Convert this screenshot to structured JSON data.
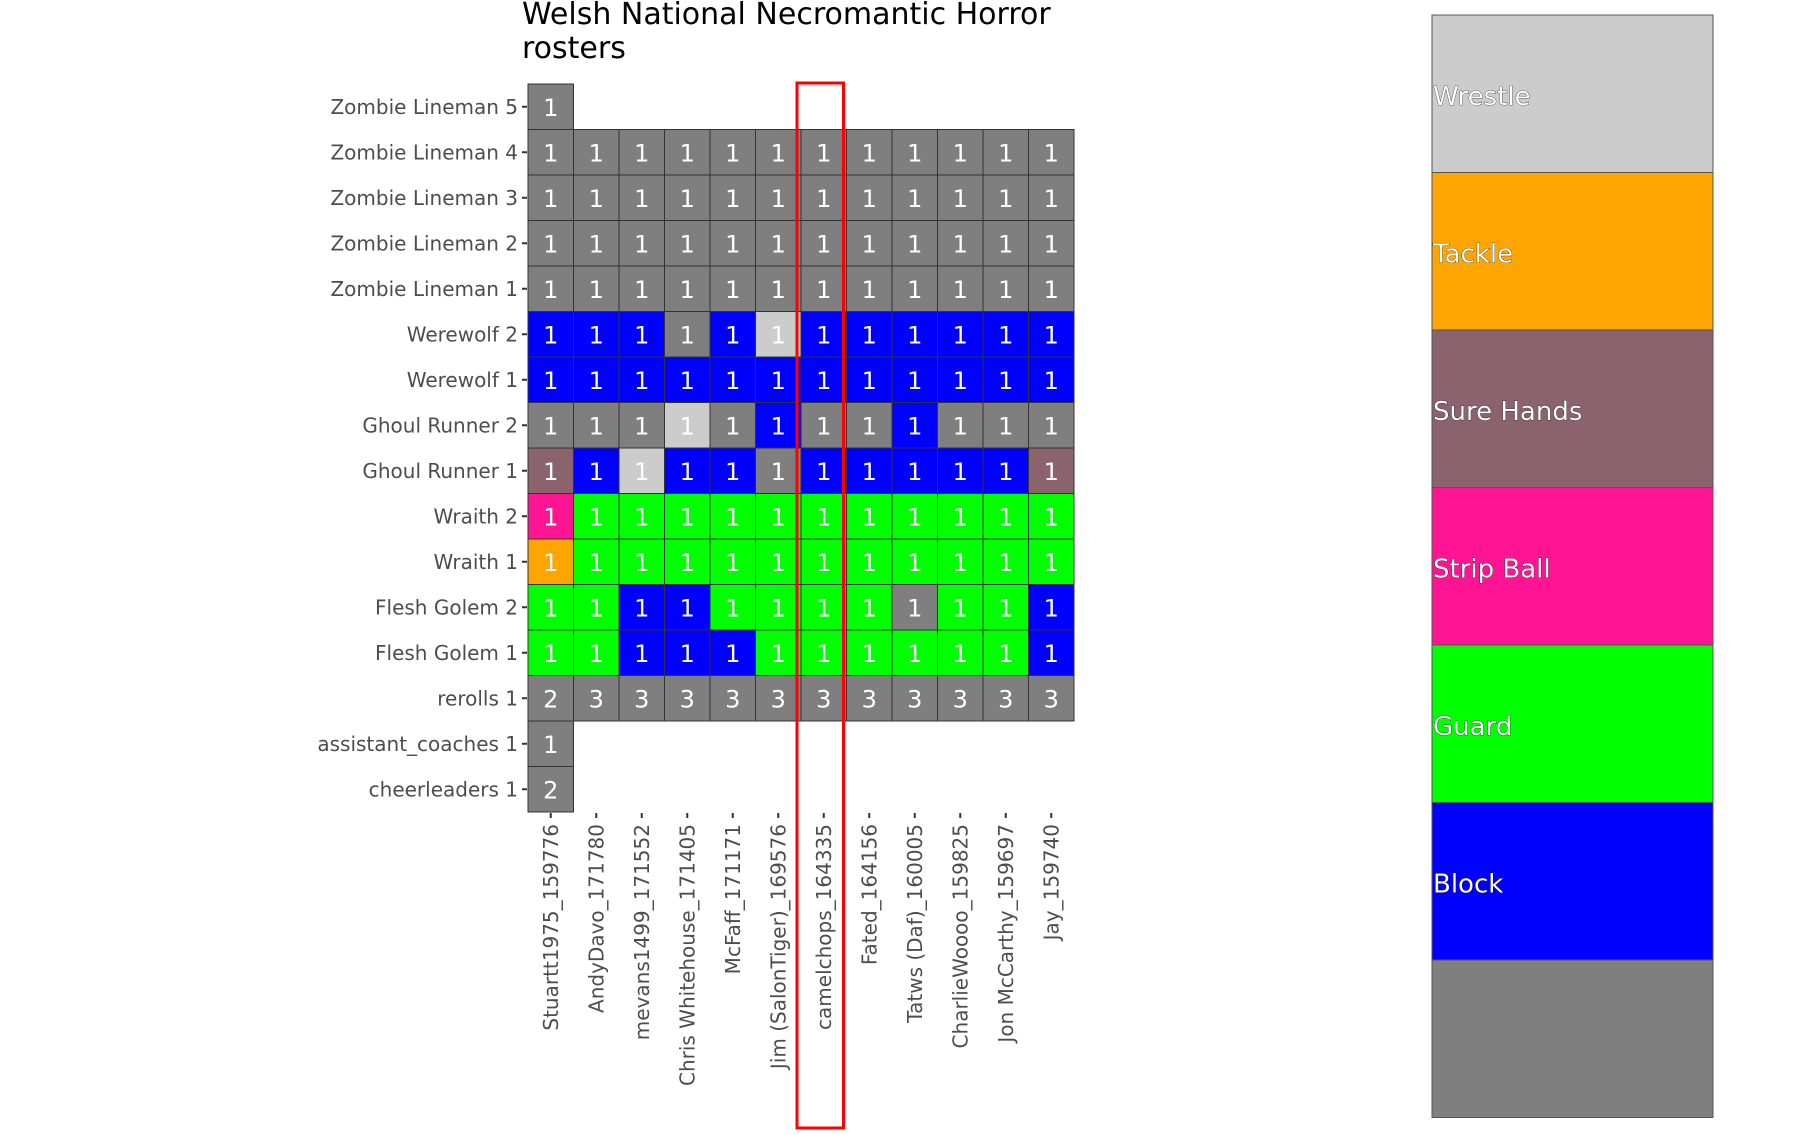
{
  "chart_data": {
    "type": "heatmap",
    "title_lines": [
      "Welsh National Necromantic Horror",
      "rosters"
    ],
    "columns": [
      "Stuartt1975_159776",
      "AndyDavo_171780",
      "mevans1499_171552",
      "Chris Whitehouse_171405",
      "McFaff_171171",
      "Jim (SalonTiger)_169576",
      "camelchops_164335",
      "Fated_164156",
      "Tatws (Daf)_160005",
      "CharlieWoooo_159825",
      "Jon McCarthy_159697",
      "Jay_159740"
    ],
    "rows": [
      "Zombie Lineman 5",
      "Zombie Lineman 4",
      "Zombie Lineman 3",
      "Zombie Lineman 2",
      "Zombie Lineman 1",
      "Werewolf 2",
      "Werewolf 1",
      "Ghoul Runner 2",
      "Ghoul Runner 1",
      "Wraith 2",
      "Wraith 1",
      "Flesh Golem 2",
      "Flesh Golem 1",
      "rerolls 1",
      "assistant_coaches 1",
      "cheerleaders 1"
    ],
    "cells": [
      [
        [
          "N",
          "1"
        ],
        null,
        null,
        null,
        null,
        null,
        null,
        null,
        null,
        null,
        null,
        null
      ],
      [
        [
          "N",
          "1"
        ],
        [
          "N",
          "1"
        ],
        [
          "N",
          "1"
        ],
        [
          "N",
          "1"
        ],
        [
          "N",
          "1"
        ],
        [
          "N",
          "1"
        ],
        [
          "N",
          "1"
        ],
        [
          "N",
          "1"
        ],
        [
          "N",
          "1"
        ],
        [
          "N",
          "1"
        ],
        [
          "N",
          "1"
        ],
        [
          "N",
          "1"
        ]
      ],
      [
        [
          "N",
          "1"
        ],
        [
          "N",
          "1"
        ],
        [
          "N",
          "1"
        ],
        [
          "N",
          "1"
        ],
        [
          "N",
          "1"
        ],
        [
          "N",
          "1"
        ],
        [
          "N",
          "1"
        ],
        [
          "N",
          "1"
        ],
        [
          "N",
          "1"
        ],
        [
          "N",
          "1"
        ],
        [
          "N",
          "1"
        ],
        [
          "N",
          "1"
        ]
      ],
      [
        [
          "N",
          "1"
        ],
        [
          "N",
          "1"
        ],
        [
          "N",
          "1"
        ],
        [
          "N",
          "1"
        ],
        [
          "N",
          "1"
        ],
        [
          "N",
          "1"
        ],
        [
          "N",
          "1"
        ],
        [
          "N",
          "1"
        ],
        [
          "N",
          "1"
        ],
        [
          "N",
          "1"
        ],
        [
          "N",
          "1"
        ],
        [
          "N",
          "1"
        ]
      ],
      [
        [
          "N",
          "1"
        ],
        [
          "N",
          "1"
        ],
        [
          "N",
          "1"
        ],
        [
          "N",
          "1"
        ],
        [
          "N",
          "1"
        ],
        [
          "N",
          "1"
        ],
        [
          "N",
          "1"
        ],
        [
          "N",
          "1"
        ],
        [
          "N",
          "1"
        ],
        [
          "N",
          "1"
        ],
        [
          "N",
          "1"
        ],
        [
          "N",
          "1"
        ]
      ],
      [
        [
          "B",
          "1"
        ],
        [
          "B",
          "1"
        ],
        [
          "B",
          "1"
        ],
        [
          "N",
          "1"
        ],
        [
          "B",
          "1"
        ],
        [
          "W",
          "1"
        ],
        [
          "B",
          "1"
        ],
        [
          "B",
          "1"
        ],
        [
          "B",
          "1"
        ],
        [
          "B",
          "1"
        ],
        [
          "B",
          "1"
        ],
        [
          "B",
          "1"
        ]
      ],
      [
        [
          "B",
          "1"
        ],
        [
          "B",
          "1"
        ],
        [
          "B",
          "1"
        ],
        [
          "B",
          "1"
        ],
        [
          "B",
          "1"
        ],
        [
          "B",
          "1"
        ],
        [
          "B",
          "1"
        ],
        [
          "B",
          "1"
        ],
        [
          "B",
          "1"
        ],
        [
          "B",
          "1"
        ],
        [
          "B",
          "1"
        ],
        [
          "B",
          "1"
        ]
      ],
      [
        [
          "N",
          "1"
        ],
        [
          "N",
          "1"
        ],
        [
          "N",
          "1"
        ],
        [
          "W",
          "1"
        ],
        [
          "N",
          "1"
        ],
        [
          "B",
          "1"
        ],
        [
          "N",
          "1"
        ],
        [
          "N",
          "1"
        ],
        [
          "B",
          "1"
        ],
        [
          "N",
          "1"
        ],
        [
          "N",
          "1"
        ],
        [
          "N",
          "1"
        ]
      ],
      [
        [
          "S",
          "1"
        ],
        [
          "B",
          "1"
        ],
        [
          "W",
          "1"
        ],
        [
          "B",
          "1"
        ],
        [
          "B",
          "1"
        ],
        [
          "N",
          "1"
        ],
        [
          "B",
          "1"
        ],
        [
          "B",
          "1"
        ],
        [
          "B",
          "1"
        ],
        [
          "B",
          "1"
        ],
        [
          "B",
          "1"
        ],
        [
          "S",
          "1"
        ]
      ],
      [
        [
          "P",
          "1"
        ],
        [
          "G",
          "1"
        ],
        [
          "G",
          "1"
        ],
        [
          "G",
          "1"
        ],
        [
          "G",
          "1"
        ],
        [
          "G",
          "1"
        ],
        [
          "G",
          "1"
        ],
        [
          "G",
          "1"
        ],
        [
          "G",
          "1"
        ],
        [
          "G",
          "1"
        ],
        [
          "G",
          "1"
        ],
        [
          "G",
          "1"
        ]
      ],
      [
        [
          "T",
          "1"
        ],
        [
          "G",
          "1"
        ],
        [
          "G",
          "1"
        ],
        [
          "G",
          "1"
        ],
        [
          "G",
          "1"
        ],
        [
          "G",
          "1"
        ],
        [
          "G",
          "1"
        ],
        [
          "G",
          "1"
        ],
        [
          "G",
          "1"
        ],
        [
          "G",
          "1"
        ],
        [
          "G",
          "1"
        ],
        [
          "G",
          "1"
        ]
      ],
      [
        [
          "G",
          "1"
        ],
        [
          "G",
          "1"
        ],
        [
          "B",
          "1"
        ],
        [
          "B",
          "1"
        ],
        [
          "G",
          "1"
        ],
        [
          "G",
          "1"
        ],
        [
          "G",
          "1"
        ],
        [
          "G",
          "1"
        ],
        [
          "N",
          "1"
        ],
        [
          "G",
          "1"
        ],
        [
          "G",
          "1"
        ],
        [
          "B",
          "1"
        ]
      ],
      [
        [
          "G",
          "1"
        ],
        [
          "G",
          "1"
        ],
        [
          "B",
          "1"
        ],
        [
          "B",
          "1"
        ],
        [
          "B",
          "1"
        ],
        [
          "G",
          "1"
        ],
        [
          "G",
          "1"
        ],
        [
          "G",
          "1"
        ],
        [
          "G",
          "1"
        ],
        [
          "G",
          "1"
        ],
        [
          "G",
          "1"
        ],
        [
          "B",
          "1"
        ]
      ],
      [
        [
          "N",
          "2"
        ],
        [
          "N",
          "3"
        ],
        [
          "N",
          "3"
        ],
        [
          "N",
          "3"
        ],
        [
          "N",
          "3"
        ],
        [
          "N",
          "3"
        ],
        [
          "N",
          "3"
        ],
        [
          "N",
          "3"
        ],
        [
          "N",
          "3"
        ],
        [
          "N",
          "3"
        ],
        [
          "N",
          "3"
        ],
        [
          "N",
          "3"
        ]
      ],
      [
        [
          "N",
          "1"
        ],
        null,
        null,
        null,
        null,
        null,
        null,
        null,
        null,
        null,
        null,
        null
      ],
      [
        [
          "N",
          "2"
        ],
        null,
        null,
        null,
        null,
        null,
        null,
        null,
        null,
        null,
        null,
        null
      ]
    ],
    "categories": {
      "W": {
        "label": "Wrestle",
        "color": "#cccccc"
      },
      "T": {
        "label": "Tackle",
        "color": "#ffa500"
      },
      "S": {
        "label": "Sure Hands",
        "color": "#8b636c"
      },
      "P": {
        "label": "Strip Ball",
        "color": "#ff1493"
      },
      "G": {
        "label": "Guard",
        "color": "#00ff00"
      },
      "B": {
        "label": "Block",
        "color": "#0000ff"
      },
      "N": {
        "label": "",
        "color": "#7f7f7f"
      }
    },
    "legend_order": [
      "W",
      "T",
      "S",
      "P",
      "G",
      "B",
      "N"
    ],
    "highlight_column": "camelchops_164335",
    "highlight_color": "#ff0000"
  }
}
